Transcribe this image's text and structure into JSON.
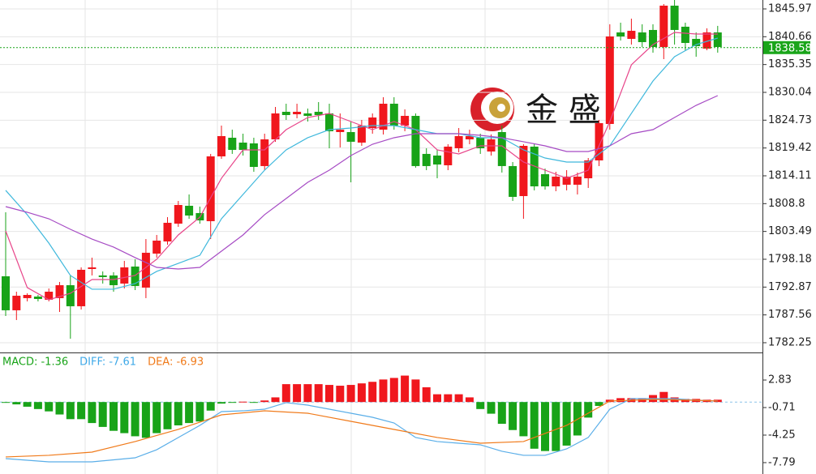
{
  "chart_data": [
    {
      "type": "candlestick",
      "ylim": [
        1780.39,
        1847.67
      ],
      "yticks": [
        1845.97,
        1840.66,
        1835.35,
        1830.04,
        1824.73,
        1819.42,
        1814.11,
        1808.8,
        1803.49,
        1798.18,
        1792.87,
        1787.56,
        1782.25
      ],
      "grid": true,
      "up_color": "#f0171d",
      "down_color": "#18a318",
      "watermark": "金 盛",
      "last_price": 1838.58,
      "last_price_color": "#1aa51a",
      "open": [
        1794.93,
        1788.44,
        1790.76,
        1791.06,
        1790.45,
        1790.76,
        1793.23,
        1789.21,
        1796.32,
        1795.09,
        1795.09,
        1793.54,
        1796.79,
        1792.77,
        1799.26,
        1801.58,
        1804.98,
        1808.39,
        1807.0,
        1805.45,
        1817.82,
        1821.38,
        1820.45,
        1820.3,
        1815.97,
        1821.07,
        1826.33,
        1825.86,
        1826.02,
        1826.33,
        1826.02,
        1822.46,
        1822.46,
        1820.45,
        1823.23,
        1822.92,
        1827.87,
        1823.7,
        1825.55,
        1818.29,
        1817.98,
        1816.12,
        1819.37,
        1821.07,
        1821.38,
        1818.75,
        1822.46,
        1815.97,
        1810.24,
        1819.68,
        1814.42,
        1812.1,
        1812.41,
        1812.41,
        1813.64,
        1817.05,
        1824.01,
        1841.48,
        1840.25,
        1841.48,
        1841.95,
        1838.7,
        1846.59,
        1842.57,
        1840.25,
        1838.39,
        1841.48
      ],
      "high": [
        1807.15,
        1791.99,
        1791.68,
        1791.37,
        1792.61,
        1793.85,
        1795.09,
        1796.63,
        1798.49,
        1795.86,
        1795.7,
        1797.87,
        1798.18,
        1802.04,
        1802.82,
        1806.22,
        1809.31,
        1810.55,
        1808.23,
        1818.29,
        1823.7,
        1822.92,
        1822.15,
        1821.38,
        1822.15,
        1827.26,
        1827.87,
        1827.87,
        1826.95,
        1828.18,
        1827.87,
        1826.02,
        1824.47,
        1824.78,
        1826.02,
        1829.11,
        1829.11,
        1826.79,
        1826.02,
        1819.37,
        1819.06,
        1820.14,
        1823.23,
        1822.92,
        1822.15,
        1821.99,
        1823.7,
        1816.74,
        1820.14,
        1820.14,
        1815.5,
        1814.88,
        1815.19,
        1814.73,
        1817.51,
        1824.78,
        1843.03,
        1843.34,
        1844.11,
        1843.03,
        1843.03,
        1846.9,
        1847.67,
        1843.34,
        1841.48,
        1842.26,
        1842.73
      ],
      "low": [
        1787.35,
        1786.58,
        1790.14,
        1790.14,
        1790.14,
        1788.13,
        1783.02,
        1788.59,
        1795.09,
        1793.54,
        1791.99,
        1792.61,
        1792.3,
        1790.76,
        1798.49,
        1800.96,
        1804.37,
        1805.91,
        1804.98,
        1802.04,
        1817.36,
        1818.29,
        1817.98,
        1814.88,
        1815.19,
        1820.61,
        1824.78,
        1825.09,
        1824.47,
        1824.78,
        1819.37,
        1819.52,
        1812.87,
        1819.83,
        1822.15,
        1821.99,
        1822.92,
        1822.62,
        1815.66,
        1815.19,
        1813.64,
        1815.19,
        1818.59,
        1820.14,
        1818.29,
        1817.98,
        1814.73,
        1809.31,
        1805.91,
        1811.33,
        1811.48,
        1811.17,
        1811.33,
        1810.55,
        1811.79,
        1815.97,
        1822.92,
        1839.94,
        1839.16,
        1838.7,
        1837.62,
        1836.38,
        1839.16,
        1838.08,
        1836.84,
        1838.08,
        1837.62
      ],
      "close": [
        1788.44,
        1791.22,
        1791.37,
        1790.6,
        1791.99,
        1793.23,
        1789.21,
        1796.17,
        1796.63,
        1794.78,
        1793.23,
        1796.63,
        1793.08,
        1799.42,
        1801.74,
        1805.14,
        1808.54,
        1806.53,
        1805.6,
        1817.82,
        1821.69,
        1819.06,
        1819.06,
        1815.81,
        1821.07,
        1826.02,
        1825.71,
        1826.33,
        1825.55,
        1825.71,
        1822.62,
        1822.92,
        1820.61,
        1823.7,
        1825.24,
        1827.87,
        1823.7,
        1825.55,
        1815.97,
        1815.97,
        1816.27,
        1819.68,
        1821.69,
        1821.69,
        1819.37,
        1821.07,
        1815.97,
        1810.09,
        1819.83,
        1812.1,
        1812.1,
        1813.95,
        1813.95,
        1813.95,
        1817.05,
        1824.16,
        1840.71,
        1840.71,
        1841.79,
        1839.63,
        1838.7,
        1846.59,
        1841.95,
        1839.47,
        1838.86,
        1841.48,
        1838.7
      ],
      "series": [
        {
          "color": "#e8458a",
          "x": [
            0,
            2,
            4,
            6,
            8,
            10,
            12,
            14,
            16,
            18,
            20,
            22,
            24,
            26,
            28,
            30,
            32,
            34,
            36,
            38,
            40,
            42,
            44,
            46,
            48,
            50,
            52,
            54,
            56,
            58,
            60,
            62,
            64,
            66
          ],
          "values": [
            1803.59,
            1792.77,
            1790.45,
            1791.68,
            1794.31,
            1794.31,
            1795.09,
            1798.18,
            1802.82,
            1806.22,
            1813.64,
            1819.06,
            1819.06,
            1822.92,
            1825.24,
            1826.02,
            1824.47,
            1822.92,
            1824.47,
            1822.92,
            1819.06,
            1818.29,
            1819.83,
            1819.83,
            1816.74,
            1815.19,
            1813.64,
            1815.19,
            1824.47,
            1835.3,
            1839.16,
            1841.48,
            1841.17,
            1841.17
          ]
        },
        {
          "color": "#3fb8dc",
          "x": [
            0,
            2,
            4,
            6,
            8,
            10,
            12,
            14,
            16,
            18,
            20,
            22,
            24,
            26,
            28,
            30,
            32,
            34,
            36,
            38,
            40,
            42,
            44,
            46,
            48,
            50,
            52,
            54,
            56,
            58,
            60,
            62,
            64,
            66
          ],
          "values": [
            1811.33,
            1806.69,
            1801.27,
            1795.09,
            1792.46,
            1792.46,
            1793.54,
            1795.86,
            1797.4,
            1798.95,
            1805.91,
            1810.55,
            1815.19,
            1819.06,
            1821.38,
            1822.92,
            1823.23,
            1823.7,
            1823.7,
            1822.92,
            1822.15,
            1822.15,
            1821.38,
            1821.38,
            1819.06,
            1817.51,
            1816.74,
            1816.74,
            1819.83,
            1826.02,
            1832.2,
            1836.84,
            1839.16,
            1840.4
          ]
        },
        {
          "color": "#a64bc4",
          "x": [
            0,
            2,
            4,
            6,
            8,
            10,
            12,
            14,
            16,
            18,
            20,
            22,
            24,
            26,
            28,
            30,
            32,
            34,
            36,
            38,
            40,
            42,
            44,
            46,
            48,
            50,
            52,
            54,
            56,
            58,
            60,
            62,
            64,
            66
          ],
          "values": [
            1808.23,
            1807.15,
            1805.91,
            1803.9,
            1802.04,
            1800.5,
            1798.49,
            1796.63,
            1796.32,
            1796.63,
            1799.72,
            1802.82,
            1806.69,
            1809.78,
            1812.87,
            1815.19,
            1817.98,
            1820.14,
            1821.38,
            1822.15,
            1822.15,
            1822.15,
            1821.84,
            1821.38,
            1820.61,
            1819.83,
            1818.75,
            1818.75,
            1819.83,
            1822.15,
            1822.92,
            1825.24,
            1827.56,
            1829.42
          ]
        }
      ]
    },
    {
      "type": "macd",
      "ylim": [
        -8.21,
        6.27
      ],
      "yticks": [
        2.83,
        -0.71,
        -4.25,
        -7.79
      ],
      "legend_texts": [
        "MACD: -1.36",
        "DIFF: -7.61",
        "DEA: -6.93"
      ],
      "legend_colors": [
        "#18a318",
        "#3fa9e8",
        "#f07a1a"
      ],
      "up_color": "#f0171d",
      "down_color": "#18a318",
      "values": [
        -0.1,
        -0.3,
        -0.6,
        -0.9,
        -1.2,
        -1.6,
        -2.2,
        -2.2,
        -2.7,
        -3.2,
        -3.7,
        -4.0,
        -4.4,
        -4.6,
        -4.0,
        -3.5,
        -3.0,
        -2.7,
        -2.5,
        -1.1,
        -0.2,
        -0.1,
        0.05,
        -0.05,
        0.2,
        0.6,
        2.3,
        2.3,
        2.3,
        2.3,
        2.2,
        2.1,
        2.2,
        2.4,
        2.6,
        2.9,
        3.1,
        3.4,
        2.9,
        1.9,
        1.0,
        1.0,
        1.0,
        0.6,
        -0.9,
        -1.5,
        -2.8,
        -3.6,
        -4.4,
        -6.0,
        -6.3,
        -6.3,
        -5.6,
        -4.3,
        -2.0,
        -0.5,
        0.3,
        0.5,
        0.5,
        0.5,
        0.9,
        1.3,
        0.6,
        0.4,
        0.4,
        0.3,
        0.3
      ],
      "series": [
        {
          "name": "DIFF",
          "color": "#5aaee8",
          "x": [
            0,
            4,
            8,
            12,
            14,
            16,
            18,
            20,
            22,
            24,
            26,
            28,
            30,
            32,
            34,
            36,
            38,
            40,
            42,
            44,
            46,
            48,
            50,
            52,
            54,
            56,
            58,
            60,
            62,
            64,
            66
          ],
          "values": [
            -7.27,
            -7.69,
            -7.69,
            -7.17,
            -6.13,
            -4.56,
            -3.0,
            -1.23,
            -1.13,
            -0.92,
            -0.08,
            -0.4,
            -0.92,
            -1.44,
            -1.96,
            -2.69,
            -4.56,
            -5.08,
            -5.29,
            -5.5,
            -6.33,
            -6.85,
            -6.85,
            -6.02,
            -4.56,
            -0.92,
            0.44,
            0.44,
            0.44,
            0.23,
            0.13
          ]
        },
        {
          "name": "DEA",
          "color": "#f07a1a",
          "x": [
            0,
            4,
            8,
            12,
            16,
            20,
            24,
            28,
            32,
            36,
            40,
            44,
            48,
            52,
            56,
            60,
            64,
            66
          ],
          "values": [
            -7.06,
            -6.85,
            -6.44,
            -5.08,
            -3.52,
            -1.65,
            -1.13,
            -1.44,
            -2.48,
            -3.52,
            -4.56,
            -5.29,
            -5.08,
            -3.0,
            0.13,
            0.33,
            0.23,
            0.13
          ]
        }
      ]
    }
  ]
}
